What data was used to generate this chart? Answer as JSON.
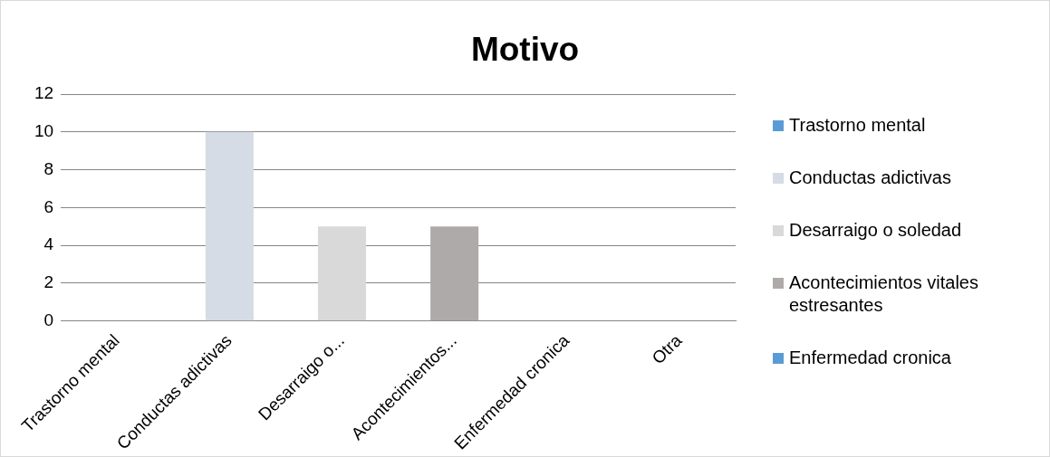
{
  "chart_data": {
    "type": "bar",
    "title": "Motivo",
    "categories": [
      "Trastorno mental",
      "Conductas adictivas",
      "Desarraigo o...",
      "Acontecimientos...",
      "Enfermedad cronica",
      "Otra"
    ],
    "series": [
      {
        "name": "Trastorno mental",
        "color": "#5b9bd5",
        "values": [
          0,
          null,
          null,
          null,
          null,
          null
        ]
      },
      {
        "name": "Conductas adictivas",
        "color": "#d6dce5",
        "values": [
          null,
          10,
          null,
          null,
          null,
          null
        ]
      },
      {
        "name": "Desarraigo o soledad",
        "color": "#d9d9d9",
        "values": [
          null,
          null,
          5,
          null,
          null,
          null
        ]
      },
      {
        "name": "Acontecimientos vitales estresantes",
        "color": "#aeaaaa",
        "values": [
          null,
          null,
          null,
          5,
          null,
          null
        ]
      },
      {
        "name": "Enfermedad cronica",
        "color": "#5b9bd5",
        "values": [
          null,
          null,
          null,
          null,
          0,
          null
        ]
      },
      {
        "color": "#44546a",
        "values": [
          null,
          null,
          null,
          null,
          null,
          0
        ]
      }
    ],
    "ylim": [
      0,
      12
    ],
    "yticks": [
      0,
      2,
      4,
      6,
      8,
      10,
      12
    ],
    "grid": "y",
    "legend": "right"
  }
}
